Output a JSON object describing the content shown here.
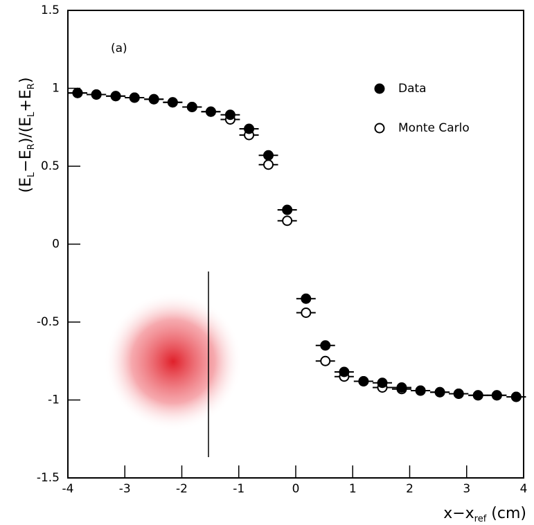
{
  "chart_data": {
    "type": "scatter",
    "annotation": "(a)",
    "xlabel_parts": [
      "x−x",
      "ref",
      " (cm)"
    ],
    "ylabel_parts": [
      "(E",
      "L",
      "−E",
      "R",
      ")/(E",
      "L",
      "+E",
      "R",
      ")"
    ],
    "xlim": [
      -4,
      4
    ],
    "ylim": [
      -1.5,
      1.5
    ],
    "xticks": [
      -4,
      -3,
      -2,
      -1,
      0,
      1,
      2,
      3,
      4
    ],
    "yticks": [
      -1.5,
      -1,
      -0.5,
      0,
      0.5,
      1,
      1.5
    ],
    "legend": "upper right",
    "xerr": 0.17,
    "x": [
      -3.83,
      -3.5,
      -3.16,
      -2.83,
      -2.49,
      -2.16,
      -1.82,
      -1.49,
      -1.15,
      -0.82,
      -0.48,
      -0.15,
      0.18,
      0.52,
      0.85,
      1.19,
      1.52,
      1.86,
      2.19,
      2.53,
      2.86,
      3.2,
      3.53,
      3.87
    ],
    "series": [
      {
        "name": "Data",
        "color": "#000000",
        "marker": "filled",
        "values": [
          0.97,
          0.96,
          0.95,
          0.94,
          0.93,
          0.91,
          0.88,
          0.85,
          0.83,
          0.74,
          0.57,
          0.22,
          -0.35,
          -0.65,
          -0.82,
          -0.88,
          -0.89,
          -0.92,
          -0.94,
          -0.95,
          -0.96,
          -0.97,
          -0.97,
          -0.98
        ]
      },
      {
        "name": "Monte Carlo",
        "color": "#000000",
        "marker": "open",
        "values": [
          0.97,
          0.96,
          0.95,
          0.94,
          0.93,
          0.91,
          0.88,
          0.85,
          0.8,
          0.7,
          0.51,
          0.15,
          -0.44,
          -0.75,
          -0.85,
          -0.88,
          -0.92,
          -0.93,
          -0.94,
          -0.95,
          -0.96,
          -0.97,
          -0.97,
          -0.98
        ]
      }
    ]
  }
}
